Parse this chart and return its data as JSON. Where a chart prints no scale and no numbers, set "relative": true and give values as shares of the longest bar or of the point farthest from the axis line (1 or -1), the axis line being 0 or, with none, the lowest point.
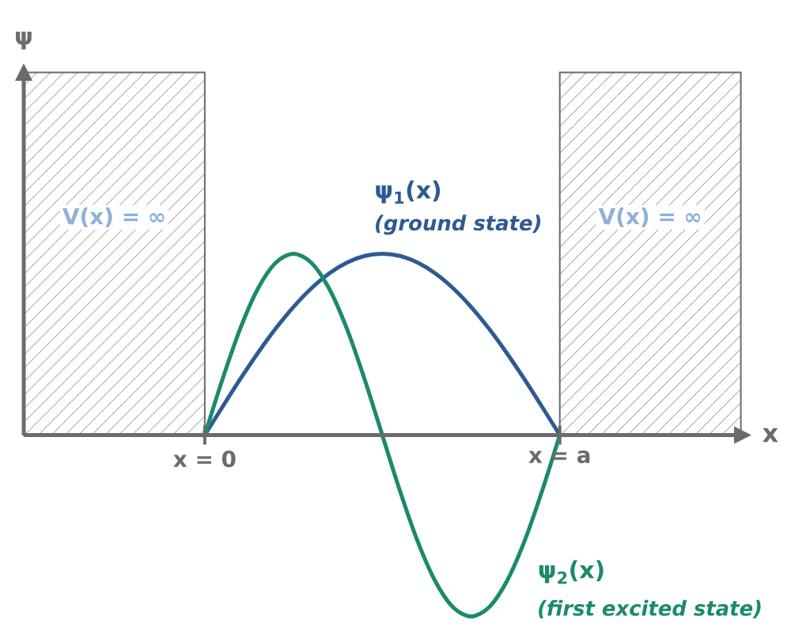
{
  "chart_data": {
    "type": "line",
    "relative": true,
    "categories": [
      "x = 0",
      null,
      null,
      null,
      null,
      null,
      null,
      null,
      null,
      null,
      null,
      null,
      null,
      null,
      null,
      null,
      null,
      null,
      null,
      null,
      "x = a"
    ],
    "series": [
      {
        "name": "ψ$_{1}$(x)",
        "color": "#2e5a93",
        "values": [
          0,
          0.156,
          0.309,
          0.454,
          0.588,
          0.707,
          0.809,
          0.891,
          0.951,
          0.988,
          1,
          0.988,
          0.951,
          0.891,
          0.809,
          0.707,
          0.588,
          0.454,
          0.309,
          0.156,
          0
        ]
      },
      {
        "name": "ψ$_{2}$(x)",
        "color": "#1b8a6b",
        "values": [
          0,
          0.309,
          0.588,
          0.809,
          0.951,
          1,
          0.951,
          0.809,
          0.588,
          0.309,
          0,
          -0.309,
          -0.588,
          -0.809,
          -0.951,
          -1,
          -0.951,
          -0.809,
          -0.588,
          -0.309,
          0
        ]
      }
    ],
    "annotations": [
      "(ground state)",
      "(first excited state)",
      "V(x) = ∞",
      "V(x) = ∞",
      "ψ",
      "x"
    ],
    "line_style": "solid"
  }
}
